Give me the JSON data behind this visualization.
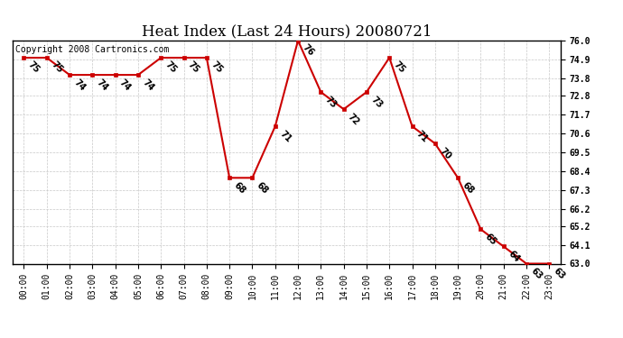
{
  "title": "Heat Index (Last 24 Hours) 20080721",
  "copyright": "Copyright 2008 Cartronics.com",
  "x_labels": [
    "00:00",
    "01:00",
    "02:00",
    "03:00",
    "04:00",
    "05:00",
    "06:00",
    "07:00",
    "08:00",
    "09:00",
    "10:00",
    "11:00",
    "12:00",
    "13:00",
    "14:00",
    "15:00",
    "16:00",
    "17:00",
    "18:00",
    "19:00",
    "20:00",
    "21:00",
    "22:00",
    "23:00"
  ],
  "x_values": [
    0,
    1,
    2,
    3,
    4,
    5,
    6,
    7,
    8,
    9,
    10,
    11,
    12,
    13,
    14,
    15,
    16,
    17,
    18,
    19,
    20,
    21,
    22,
    23
  ],
  "y_values": [
    75,
    75,
    74,
    74,
    74,
    74,
    75,
    75,
    75,
    68,
    68,
    71,
    76,
    73,
    72,
    73,
    75,
    71,
    70,
    68,
    65,
    64,
    63,
    63
  ],
  "ylim_min": 63.0,
  "ylim_max": 76.0,
  "y_ticks": [
    63.0,
    64.1,
    65.2,
    66.2,
    67.3,
    68.4,
    69.5,
    70.6,
    71.7,
    72.8,
    73.8,
    74.9,
    76.0
  ],
  "line_color": "#cc0000",
  "marker_color": "#cc0000",
  "bg_color": "#ffffff",
  "grid_color": "#c8c8c8",
  "title_fontsize": 12,
  "label_fontsize": 7,
  "annotation_fontsize": 7,
  "copyright_fontsize": 7
}
